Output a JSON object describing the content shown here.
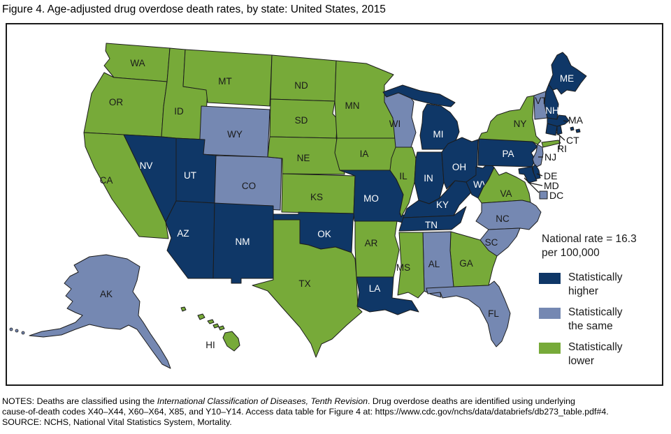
{
  "title": "Figure 4. Age-adjusted drug overdose death rates, by state: United States, 2015",
  "legend": {
    "national_rate": [
      "National rate = 16.3",
      "per 100,000"
    ],
    "items": [
      {
        "key": "higher",
        "lines": [
          "Statistically",
          "higher"
        ],
        "color": "#0f3767"
      },
      {
        "key": "same",
        "lines": [
          "Statistically",
          "the same"
        ],
        "color": "#7588b2"
      },
      {
        "key": "lower",
        "lines": [
          "Statistically",
          "lower"
        ],
        "color": "#77aa39"
      }
    ]
  },
  "map": {
    "border_color": "#1a1a1a",
    "states": [
      {
        "code": "WA",
        "label": "WA",
        "category": "lower"
      },
      {
        "code": "OR",
        "label": "OR",
        "category": "lower"
      },
      {
        "code": "CA",
        "label": "CA",
        "category": "lower"
      },
      {
        "code": "ID",
        "label": "ID",
        "category": "lower"
      },
      {
        "code": "NV",
        "label": "NV",
        "category": "higher"
      },
      {
        "code": "MT",
        "label": "MT",
        "category": "lower"
      },
      {
        "code": "WY",
        "label": "WY",
        "category": "same"
      },
      {
        "code": "UT",
        "label": "UT",
        "category": "higher"
      },
      {
        "code": "CO",
        "label": "CO",
        "category": "same"
      },
      {
        "code": "AZ",
        "label": "AZ",
        "category": "higher"
      },
      {
        "code": "NM",
        "label": "NM",
        "category": "higher"
      },
      {
        "code": "ND",
        "label": "ND",
        "category": "lower"
      },
      {
        "code": "SD",
        "label": "SD",
        "category": "lower"
      },
      {
        "code": "NE",
        "label": "NE",
        "category": "lower"
      },
      {
        "code": "KS",
        "label": "KS",
        "category": "lower"
      },
      {
        "code": "OK",
        "label": "OK",
        "category": "higher"
      },
      {
        "code": "TX",
        "label": "TX",
        "category": "lower"
      },
      {
        "code": "MN",
        "label": "MN",
        "category": "lower"
      },
      {
        "code": "IA",
        "label": "IA",
        "category": "lower"
      },
      {
        "code": "MO",
        "label": "MO",
        "category": "higher"
      },
      {
        "code": "AR",
        "label": "AR",
        "category": "lower"
      },
      {
        "code": "LA",
        "label": "LA",
        "category": "higher"
      },
      {
        "code": "WI",
        "label": "WI",
        "category": "same"
      },
      {
        "code": "IL",
        "label": "IL",
        "category": "lower"
      },
      {
        "code": "MI",
        "label": "MI",
        "category": "higher"
      },
      {
        "code": "IN",
        "label": "IN",
        "category": "higher"
      },
      {
        "code": "OH",
        "label": "OH",
        "category": "higher"
      },
      {
        "code": "KY",
        "label": "KY",
        "category": "higher"
      },
      {
        "code": "TN",
        "label": "TN",
        "category": "higher"
      },
      {
        "code": "WV",
        "label": "WV",
        "category": "higher"
      },
      {
        "code": "VA",
        "label": "VA",
        "category": "lower"
      },
      {
        "code": "NC",
        "label": "NC",
        "category": "same"
      },
      {
        "code": "SC",
        "label": "SC",
        "category": "same"
      },
      {
        "code": "GA",
        "label": "GA",
        "category": "lower"
      },
      {
        "code": "AL",
        "label": "AL",
        "category": "same"
      },
      {
        "code": "MS",
        "label": "MS",
        "category": "lower"
      },
      {
        "code": "FL",
        "label": "FL",
        "category": "same"
      },
      {
        "code": "PA",
        "label": "PA",
        "category": "higher"
      },
      {
        "code": "NY",
        "label": "NY",
        "category": "lower"
      },
      {
        "code": "VT",
        "label": "VT",
        "category": "same"
      },
      {
        "code": "NH",
        "label": "NH",
        "category": "higher"
      },
      {
        "code": "ME",
        "label": "ME",
        "category": "higher"
      },
      {
        "code": "MA",
        "label": "MA",
        "category": "higher"
      },
      {
        "code": "CT",
        "label": "CT",
        "category": "higher"
      },
      {
        "code": "RI",
        "label": "RI",
        "category": "higher"
      },
      {
        "code": "NJ",
        "label": "NJ",
        "category": "same"
      },
      {
        "code": "DE",
        "label": "DE",
        "category": "higher"
      },
      {
        "code": "MD",
        "label": "MD",
        "category": "higher"
      },
      {
        "code": "DC",
        "label": "DC",
        "category": "same"
      },
      {
        "code": "AK",
        "label": "AK",
        "category": "same"
      },
      {
        "code": "HI",
        "label": "HI",
        "category": "lower"
      }
    ]
  },
  "chart_data": {
    "type": "choropleth-map",
    "title": "Figure 4. Age-adjusted drug overdose death rates, by state: United States, 2015",
    "national_rate_per_100000": 16.3,
    "legend_position": "right",
    "categories": [
      "Statistically higher",
      "Statistically the same",
      "Statistically lower"
    ],
    "series": [
      {
        "name": "Statistically higher",
        "values": [
          "NV",
          "UT",
          "AZ",
          "NM",
          "OK",
          "LA",
          "MO",
          "KY",
          "TN",
          "IN",
          "OH",
          "MI",
          "WV",
          "PA",
          "MD",
          "DE",
          "ME",
          "NH",
          "MA",
          "CT",
          "RI"
        ]
      },
      {
        "name": "Statistically the same",
        "values": [
          "AK",
          "WY",
          "CO",
          "WI",
          "NJ",
          "VT",
          "NC",
          "SC",
          "AL",
          "FL",
          "DC"
        ]
      },
      {
        "name": "Statistically lower",
        "values": [
          "WA",
          "OR",
          "CA",
          "ID",
          "MT",
          "ND",
          "SD",
          "NE",
          "KS",
          "TX",
          "MN",
          "IA",
          "IL",
          "AR",
          "MS",
          "GA",
          "VA",
          "NY",
          "HI"
        ]
      }
    ]
  },
  "notes": {
    "line1_pre": "NOTES: Deaths are classified using the ",
    "line1_italic": "International Classification of Diseases, Tenth Revision",
    "line1_post": ". Drug overdose deaths are identified using underlying",
    "line2": "cause-of-death codes X40–X44, X60–X64, X85, and Y10–Y14. Access data table for Figure 4 at: https://www.cdc.gov/nchs/data/databriefs/db273_table.pdf#4.",
    "source": "SOURCE: NCHS, National Vital Statistics System, Mortality."
  }
}
